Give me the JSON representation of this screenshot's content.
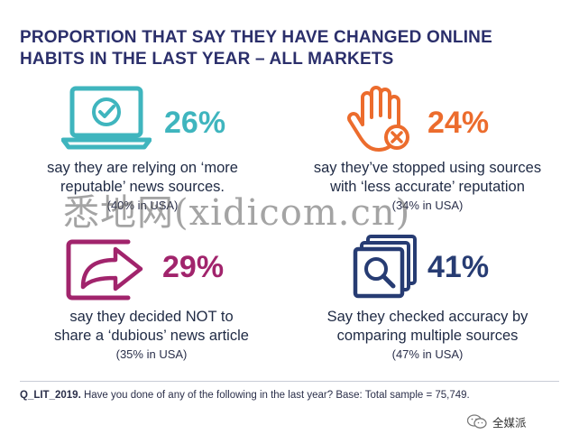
{
  "title": "PROPORTION THAT SAY THEY HAVE CHANGED ONLINE HABITS IN THE LAST YEAR – ALL MARKETS",
  "colors": {
    "teal": "#3fb5be",
    "orange": "#ec6c2d",
    "magenta": "#a1246c",
    "navy": "#273c73"
  },
  "stats": [
    {
      "icon": "laptop-check-icon",
      "percent": "26%",
      "value": 26,
      "desc_line1": "say they are relying on ‘more",
      "desc_line2": "reputable’ news sources.",
      "sub": "(40% in USA)"
    },
    {
      "icon": "hand-stop-icon",
      "percent": "24%",
      "value": 24,
      "desc_line1": "say they’ve stopped using sources",
      "desc_line2": "with ‘less accurate’ reputation",
      "sub": "(34% in USA)"
    },
    {
      "icon": "share-arrow-icon",
      "percent": "29%",
      "value": 29,
      "desc_line1": "say they decided NOT to",
      "desc_line2": "share a ‘dubious’ news article",
      "sub": "(35% in USA)"
    },
    {
      "icon": "magnifier-documents-icon",
      "percent": "41%",
      "value": 41,
      "desc_line1": "Say they checked accuracy by",
      "desc_line2": "comparing multiple sources",
      "sub": "(47% in USA)"
    }
  ],
  "watermark": "悉地网(xidicom.cn)",
  "footnote": {
    "code": "Q_LIT_2019.",
    "text": " Have you done of any of the following in the last year? Base: Total sample = 75,749."
  },
  "badge": {
    "label": "全媒派",
    "icon": "wechat-icon"
  },
  "chart_data": {
    "type": "table",
    "title": "PROPORTION THAT SAY THEY HAVE CHANGED ONLINE HABITS IN THE LAST YEAR – ALL MARKETS",
    "categories": [
      "say they are relying on ‘more reputable’ news sources.",
      "say they’ve stopped using sources with ‘less accurate’ reputation",
      "say they decided NOT to share a ‘dubious’ news article",
      "Say they checked accuracy by comparing multiple sources"
    ],
    "series": [
      {
        "name": "All markets",
        "values": [
          26,
          24,
          29,
          41
        ]
      },
      {
        "name": "USA",
        "values": [
          40,
          34,
          35,
          47
        ]
      }
    ]
  }
}
